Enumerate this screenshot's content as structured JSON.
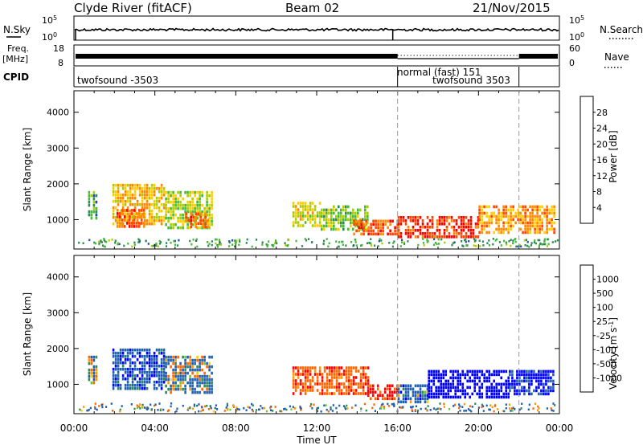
{
  "header": {
    "station": "Clyde River (fitACF)",
    "beam": "Beam 02",
    "date": "21/Nov/2015"
  },
  "strip_labels": {
    "nsky": "N.Sky",
    "nsearch": "N.Search",
    "freq_top": "Freq.",
    "freq_unit": "[MHz]",
    "nave": "Nave",
    "cpid": "CPID",
    "nsky_hi": "10^5",
    "nsky_lo": "10^0",
    "nsearch_hi": "10^5",
    "nsearch_lo": "10^0",
    "freq_hi": "18",
    "freq_lo": "8",
    "nave_hi": "60",
    "nave_lo": "0"
  },
  "cpid_segments": [
    {
      "label": "twofsound -3503",
      "start_hour": 0.0,
      "end_hour": 16.0
    },
    {
      "label": "normal (fast) 151",
      "start_hour": 16.0,
      "end_hour": 22.0
    },
    {
      "label": "twofsound 3503",
      "start_hour": 16.0,
      "end_hour": 22.0
    }
  ],
  "colors": {
    "power_scale": [
      "#0000ff",
      "#2050a0",
      "#2e8b57",
      "#44bb33",
      "#aacc00",
      "#ffcc00",
      "#ff8800",
      "#ff4400",
      "#ff0000"
    ],
    "velocity_scale": [
      "#ff0000",
      "#ff6600",
      "#ff9900",
      "#ffcc00",
      "#cccccc",
      "#66cc33",
      "#2e8b57",
      "#2060b0",
      "#0000ff"
    ]
  },
  "chart_data": [
    {
      "type": "heatmap",
      "name": "Power",
      "x_ticks": [
        "00:00",
        "04:00",
        "08:00",
        "12:00",
        "16:00",
        "20:00",
        "00:00"
      ],
      "xlim_hours": [
        0,
        24
      ],
      "ylabel": "Slant Range [km]",
      "ylim": [
        180,
        4600
      ],
      "y_ticks": [
        "1000",
        "2000",
        "3000",
        "4000"
      ],
      "colorbar_label": "Power [dB]",
      "colorbar_ticks": [
        "4",
        "8",
        "12",
        "16",
        "20",
        "24",
        "28"
      ],
      "colorbar_range": [
        0,
        32
      ],
      "regions": [
        {
          "hours": [
            0.7,
            1.1
          ],
          "ranges": [
            1000,
            1800
          ],
          "value": 10
        },
        {
          "hours": [
            1.9,
            4.5
          ],
          "ranges": [
            900,
            2000
          ],
          "value": 21
        },
        {
          "hours": [
            2.1,
            3.5
          ],
          "ranges": [
            800,
            1300
          ],
          "value": 27
        },
        {
          "hours": [
            4.5,
            6.8
          ],
          "ranges": [
            800,
            1800
          ],
          "value": 16
        },
        {
          "hours": [
            5.5,
            6.6
          ],
          "ranges": [
            800,
            1200
          ],
          "value": 26
        },
        {
          "hours": [
            10.8,
            12.2
          ],
          "ranges": [
            800,
            1500
          ],
          "value": 18
        },
        {
          "hours": [
            12.2,
            14.5
          ],
          "ranges": [
            700,
            1400
          ],
          "value": 14
        },
        {
          "hours": [
            13.8,
            16.0
          ],
          "ranges": [
            600,
            1000
          ],
          "value": 27
        },
        {
          "hours": [
            16.0,
            20.0
          ],
          "ranges": [
            500,
            1100
          ],
          "value": 29
        },
        {
          "hours": [
            20.0,
            23.7
          ],
          "ranges": [
            600,
            1400
          ],
          "value": 23
        }
      ]
    },
    {
      "type": "heatmap",
      "name": "Velocity",
      "x_ticks": [
        "00:00",
        "04:00",
        "08:00",
        "12:00",
        "16:00",
        "20:00",
        "00:00"
      ],
      "xlim_hours": [
        0,
        24
      ],
      "xlabel": "Time UT",
      "ylabel": "Slant Range [km]",
      "ylim": [
        180,
        4600
      ],
      "y_ticks": [
        "1000",
        "2000",
        "3000",
        "4000"
      ],
      "colorbar_label": "Velocity [m s^-1]",
      "colorbar_ticks": [
        "1000",
        "500",
        "100",
        "25",
        "-25",
        "-100",
        "-500",
        "-1000"
      ],
      "regions": [
        {
          "hours": [
            0.7,
            1.1
          ],
          "ranges": [
            1000,
            1800
          ],
          "value": 100
        },
        {
          "hours": [
            1.9,
            4.5
          ],
          "ranges": [
            900,
            2000
          ],
          "value": 300
        },
        {
          "hours": [
            4.5,
            6.8
          ],
          "ranges": [
            800,
            1800
          ],
          "value": 120
        },
        {
          "hours": [
            10.8,
            14.5
          ],
          "ranges": [
            700,
            1500
          ],
          "value": -300
        },
        {
          "hours": [
            14.5,
            16.0
          ],
          "ranges": [
            600,
            1000
          ],
          "value": -500
        },
        {
          "hours": [
            16.0,
            17.5
          ],
          "ranges": [
            500,
            1000
          ],
          "value": 200
        },
        {
          "hours": [
            17.5,
            21.5
          ],
          "ranges": [
            600,
            1400
          ],
          "value": 900
        },
        {
          "hours": [
            21.5,
            23.7
          ],
          "ranges": [
            700,
            1400
          ],
          "value": 500
        }
      ]
    }
  ]
}
